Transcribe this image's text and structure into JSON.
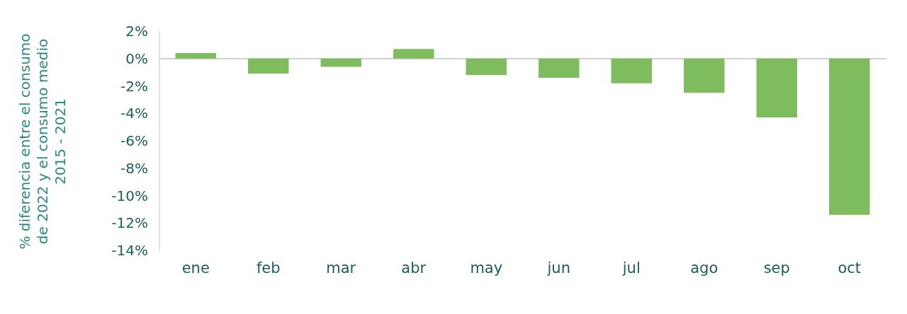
{
  "chart_data": {
    "type": "bar",
    "ylabel": "% diferencia entre el consumo de 2022 y el consumo medio 2015 - 2021",
    "categories": [
      "ene",
      "feb",
      "mar",
      "abr",
      "may",
      "jun",
      "jul",
      "ago",
      "sep",
      "oct"
    ],
    "values": [
      0.4,
      -1.1,
      -0.6,
      0.7,
      -1.2,
      -1.4,
      -1.8,
      -2.5,
      -4.3,
      -11.4
    ],
    "color": "#7fbc5e",
    "ylim": [
      -14,
      2
    ],
    "yticks": [
      {
        "value": -14,
        "label": "-14%"
      },
      {
        "value": -12,
        "label": "-12%"
      },
      {
        "value": -10,
        "label": "-10%"
      },
      {
        "value": -8,
        "label": "-8%"
      },
      {
        "value": -6,
        "label": "-6%"
      },
      {
        "value": -4,
        "label": "-4%"
      },
      {
        "value": -2,
        "label": "-2%"
      },
      {
        "value": 0,
        "label": "0%"
      },
      {
        "value": 2,
        "label": "2%"
      }
    ]
  }
}
